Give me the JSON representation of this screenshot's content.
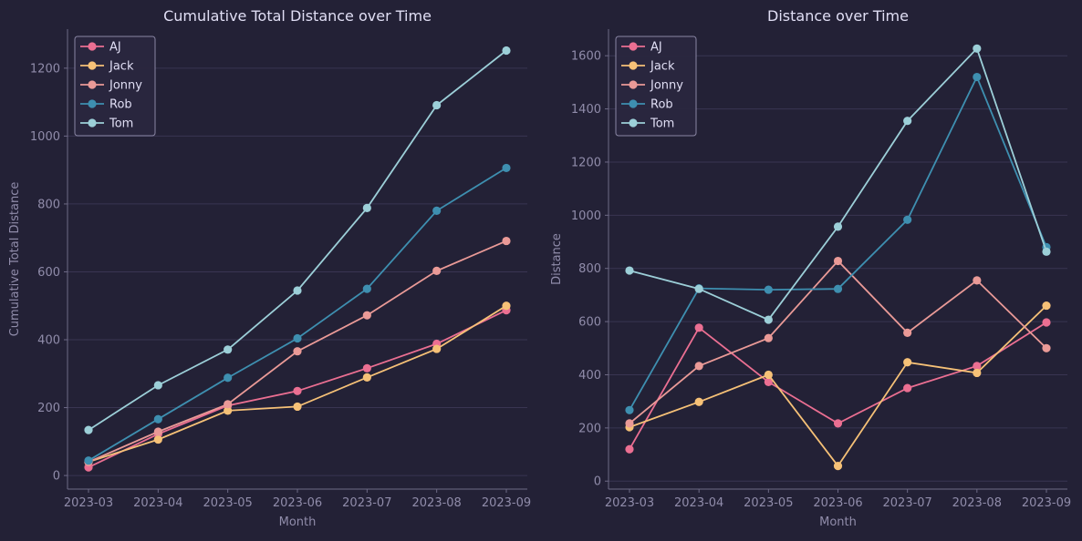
{
  "theme": {
    "background": "#232136",
    "grid": "#393552",
    "axis": "#6e6a86",
    "tick_text": "#908caa",
    "title_text": "#e0def4",
    "legend_bg": "#2a273f",
    "legend_border": "#908caa"
  },
  "chart_data": [
    {
      "type": "line",
      "title": "Cumulative Total Distance over Time",
      "xlabel": "Month",
      "ylabel": "Cumulative Total Distance",
      "categories": [
        "2023-03",
        "2023-04",
        "2023-05",
        "2023-06",
        "2023-07",
        "2023-08",
        "2023-09"
      ],
      "ylim": [
        -40,
        1315
      ],
      "yticks": [
        0,
        200,
        400,
        600,
        800,
        1000,
        1200
      ],
      "grid": true,
      "legend": "top-left",
      "series": [
        {
          "name": "AJ",
          "color": "#eb6f92",
          "values": [
            24,
            122,
            206,
            249,
            316,
            388,
            487
          ]
        },
        {
          "name": "Jack",
          "color": "#f6c177",
          "values": [
            40,
            106,
            191,
            203,
            289,
            373,
            500
          ]
        },
        {
          "name": "Jonny",
          "color": "#ea9a97",
          "values": [
            40,
            129,
            210,
            366,
            472,
            603,
            691
          ]
        },
        {
          "name": "Rob",
          "color": "#3e8fb0",
          "values": [
            44,
            166,
            288,
            404,
            550,
            780,
            906
          ]
        },
        {
          "name": "Tom",
          "color": "#9ccfd8",
          "values": [
            134,
            266,
            371,
            545,
            788,
            1091,
            1252
          ]
        }
      ]
    },
    {
      "type": "line",
      "title": "Distance over Time",
      "xlabel": "Month",
      "ylabel": "Distance",
      "categories": [
        "2023-03",
        "2023-04",
        "2023-05",
        "2023-06",
        "2023-07",
        "2023-08",
        "2023-09"
      ],
      "ylim": [
        -30,
        1700
      ],
      "yticks": [
        0,
        200,
        400,
        600,
        800,
        1000,
        1200,
        1400,
        1600
      ],
      "grid": true,
      "legend": "top-left",
      "series": [
        {
          "name": "AJ",
          "color": "#eb6f92",
          "values": [
            120,
            577,
            373,
            217,
            350,
            433,
            597
          ]
        },
        {
          "name": "Jack",
          "color": "#f6c177",
          "values": [
            203,
            298,
            400,
            57,
            447,
            407,
            660
          ]
        },
        {
          "name": "Jonny",
          "color": "#ea9a97",
          "values": [
            217,
            433,
            538,
            828,
            558,
            755,
            500
          ]
        },
        {
          "name": "Rob",
          "color": "#3e8fb0",
          "values": [
            267,
            725,
            720,
            723,
            983,
            1520,
            880
          ]
        },
        {
          "name": "Tom",
          "color": "#9ccfd8",
          "values": [
            792,
            723,
            607,
            957,
            1355,
            1627,
            863
          ]
        }
      ]
    }
  ]
}
